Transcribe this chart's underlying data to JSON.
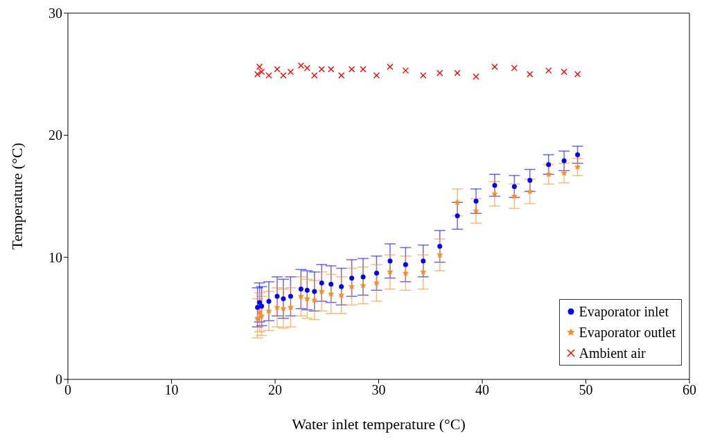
{
  "chart_data": {
    "type": "scatter",
    "xlabel": "Water inlet temperature (°C)",
    "ylabel": "Temperature (°C)",
    "xlim": [
      0,
      60
    ],
    "xticks": [
      0,
      10,
      20,
      30,
      40,
      50,
      60
    ],
    "ylim": [
      0,
      30
    ],
    "yticks": [
      0,
      10,
      20,
      30
    ],
    "grid": false,
    "legend": "bottom right",
    "x": [
      18.3,
      18.5,
      18.7,
      19.4,
      20.2,
      20.8,
      21.5,
      22.5,
      23.1,
      23.8,
      24.5,
      25.4,
      26.4,
      27.4,
      28.5,
      29.8,
      31.1,
      32.6,
      34.3,
      35.9,
      37.6,
      39.4,
      41.2,
      43.1,
      44.6,
      46.4,
      47.9,
      49.2
    ],
    "series": [
      {
        "name": "Evaporator inlet",
        "color": "#0000ff",
        "marker": "circle",
        "values": [
          5.9,
          6.3,
          6.0,
          6.4,
          6.8,
          6.6,
          6.8,
          7.4,
          7.3,
          7.2,
          7.9,
          7.8,
          7.6,
          8.3,
          8.4,
          8.7,
          9.7,
          9.4,
          9.7,
          10.9,
          13.4,
          14.6,
          15.9,
          15.8,
          16.3,
          17.6,
          17.9,
          18.4
        ],
        "errors": [
          1.6,
          1.6,
          1.6,
          1.6,
          1.6,
          1.6,
          1.6,
          1.6,
          1.6,
          1.6,
          1.5,
          1.5,
          1.5,
          1.5,
          1.5,
          1.4,
          1.4,
          1.4,
          1.3,
          1.3,
          1.1,
          1.0,
          0.9,
          0.9,
          0.9,
          0.8,
          0.8,
          0.7
        ]
      },
      {
        "name": "Evaporator outlet",
        "color": "#ff8c1a",
        "marker": "star",
        "values": [
          5.0,
          5.5,
          5.2,
          5.6,
          5.9,
          5.8,
          5.9,
          6.8,
          6.6,
          6.5,
          7.2,
          7.0,
          6.9,
          7.6,
          7.7,
          7.9,
          8.8,
          8.7,
          8.8,
          10.2,
          14.5,
          13.8,
          15.2,
          15.0,
          15.4,
          16.8,
          16.9,
          17.4
        ],
        "errors": [
          1.6,
          1.6,
          1.6,
          1.6,
          1.6,
          1.6,
          1.6,
          1.6,
          1.6,
          1.6,
          1.6,
          1.6,
          1.5,
          1.5,
          1.5,
          1.5,
          1.4,
          1.4,
          1.4,
          1.3,
          1.1,
          1.0,
          1.0,
          1.0,
          1.0,
          0.8,
          0.8,
          0.7
        ]
      },
      {
        "name": "Ambient air",
        "color": "#ff0000",
        "marker": "cross",
        "values": [
          25.0,
          25.6,
          25.2,
          24.9,
          25.4,
          24.9,
          25.2,
          25.7,
          25.5,
          24.9,
          25.4,
          25.4,
          24.9,
          25.4,
          25.4,
          24.9,
          25.6,
          25.3,
          24.9,
          25.1,
          25.1,
          24.8,
          25.6,
          25.5,
          25.0,
          25.3,
          25.2,
          25.0
        ]
      }
    ]
  }
}
